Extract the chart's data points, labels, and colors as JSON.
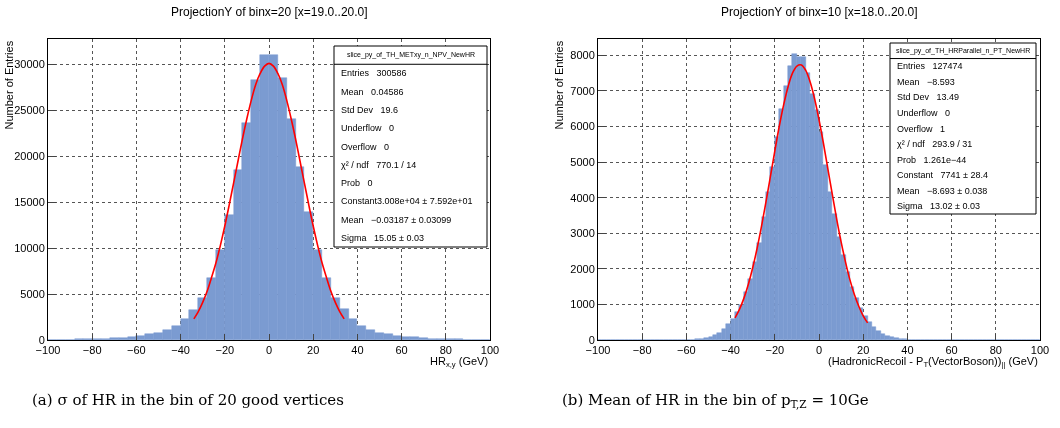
{
  "chart_data": [
    {
      "type": "histogram",
      "title": "ProjectionY of binx=20 [x=19.0..20.0]",
      "xlabel": "HR$_{x,y}$ (GeV)",
      "ylabel": "Number of Entries",
      "xlim": [
        -100,
        100
      ],
      "xticks": [
        {
          "value": -100,
          "label": "−100"
        },
        {
          "value": -80,
          "label": "−80"
        },
        {
          "value": -60,
          "label": "−60"
        },
        {
          "value": -40,
          "label": "−40"
        },
        {
          "value": -20,
          "label": "−20"
        },
        0,
        20,
        40,
        60,
        80,
        100
      ],
      "ylim": [
        0,
        32750
      ],
      "yticks": [
        0,
        5000,
        10000,
        15000,
        20000,
        25000,
        30000
      ],
      "grid": true,
      "series": [
        {
          "color": "#7b9bd1",
          "bins": [
            -100,
            -96,
            -92,
            -88,
            -84,
            -80,
            -76,
            -72,
            -68,
            -64,
            -60,
            -56,
            -52,
            -48,
            -44,
            -40,
            -36,
            -32,
            -28,
            -24,
            -20,
            -16,
            -12,
            -8,
            -4,
            0,
            4,
            8,
            12,
            16,
            20,
            24,
            28,
            32,
            36,
            40,
            44,
            48,
            52,
            56,
            60,
            64,
            68,
            72,
            76,
            80,
            84,
            88,
            92,
            96,
            100
          ],
          "values": [
            20,
            30,
            40,
            60,
            80,
            110,
            150,
            200,
            270,
            350,
            450,
            600,
            800,
            1100,
            1500,
            2320,
            3260,
            4600,
            6780,
            9780,
            13620,
            18550,
            23660,
            28330,
            31050,
            31050,
            28510,
            24060,
            18800,
            13950,
            9820,
            6780,
            4600,
            3330,
            2320,
            1500,
            1100,
            800,
            620,
            460,
            360,
            280,
            210,
            160,
            120,
            90,
            65,
            45,
            30,
            20
          ]
        },
        {
          "type": "line",
          "color": "#ff0000",
          "x": [
            -34,
            -32,
            -30,
            -28,
            -26,
            -24,
            -22,
            -20,
            -18,
            -16,
            -14,
            -12,
            -10,
            -8,
            -6,
            -4,
            -2,
            0,
            2,
            4,
            6,
            8,
            10,
            12,
            14,
            16,
            18,
            20,
            22,
            24,
            26,
            28,
            30,
            32,
            34
          ],
          "values": [
            2300,
            3100,
            4100,
            5300,
            6800,
            8400,
            10300,
            12400,
            14700,
            17100,
            19500,
            21900,
            24100,
            26100,
            27800,
            29000,
            29800,
            30100,
            29800,
            29000,
            27800,
            26100,
            24100,
            21900,
            19500,
            17100,
            14700,
            12400,
            10300,
            8400,
            6800,
            5300,
            4100,
            3100,
            2300
          ]
        }
      ],
      "annotations": [
        "(a) σ of HR in the bin of 20 good vertices",
        "slice_py_of_TH_METxy_n_NPV_NewHR",
        "Entries   300586",
        "Mean   0.04586",
        "Std Dev   19.6",
        "Underflow   0",
        "Overflow   0",
        "χ² / ndf   770.1 / 14",
        "Prob   0",
        "Constant3.008e+04 ± 7.592e+01",
        "Mean   −0.03187 ± 0.03099",
        "Sigma   15.05 ± 0.03"
      ]
    },
    {
      "type": "histogram",
      "title": "ProjectionY of binx=10 [x=18.0..20.0]",
      "xlabel": "(HadronicRecoil - P$_{T}$(VectorBoson))$_{||}$ (GeV)",
      "ylabel": "Number of Entries",
      "xlim": [
        -100,
        100
      ],
      "xticks": [
        {
          "value": -100,
          "label": "−100"
        },
        {
          "value": -80,
          "label": "−80"
        },
        {
          "value": -60,
          "label": "−60"
        },
        {
          "value": -40,
          "label": "−40"
        },
        {
          "value": -20,
          "label": "−20"
        },
        0,
        20,
        40,
        60,
        80,
        100
      ],
      "ylim": [
        0,
        8460
      ],
      "yticks": [
        0,
        1000,
        2000,
        3000,
        4000,
        5000,
        6000,
        7000,
        8000
      ],
      "grid": true,
      "series": [
        {
          "color": "#7b9bd1",
          "bins": [
            -100,
            -98,
            -96,
            -94,
            -92,
            -90,
            -88,
            -86,
            -84,
            -82,
            -80,
            -78,
            -76,
            -74,
            -72,
            -70,
            -68,
            -66,
            -64,
            -62,
            -60,
            -58,
            -56,
            -54,
            -52,
            -50,
            -48,
            -46,
            -44,
            -42,
            -40,
            -38,
            -36,
            -34,
            -32,
            -30,
            -28,
            -26,
            -24,
            -22,
            -20,
            -18,
            -16,
            -14,
            -12,
            -10,
            -8,
            -6,
            -4,
            -2,
            0,
            2,
            4,
            6,
            8,
            10,
            12,
            14,
            16,
            18,
            20,
            22,
            24,
            26,
            28,
            30,
            32,
            34,
            36,
            38,
            40,
            42,
            44,
            46,
            48,
            50,
            52,
            54,
            56,
            58,
            60,
            62,
            64,
            66,
            68,
            70,
            72,
            74,
            76,
            78,
            80,
            82,
            84,
            86,
            88,
            90,
            92,
            94,
            96,
            98,
            100
          ],
          "values": [
            0,
            0,
            0,
            0,
            0,
            0,
            0,
            0,
            0,
            0,
            0,
            0,
            0,
            0,
            0,
            0,
            0,
            0,
            1,
            3,
            6,
            12,
            20,
            35,
            55,
            90,
            140,
            210,
            310,
            440,
            600,
            780,
            980,
            1340,
            1720,
            2190,
            2720,
            3450,
            4160,
            4860,
            5700,
            6490,
            7150,
            7690,
            8050,
            7950,
            7950,
            7500,
            6920,
            6470,
            5840,
            4910,
            4150,
            3540,
            2890,
            2380,
            1900,
            1480,
            1190,
            890,
            680,
            500,
            370,
            260,
            180,
            120,
            80,
            50,
            30,
            20,
            12,
            6,
            3,
            1,
            0,
            0,
            0,
            0,
            0,
            0,
            0,
            0,
            0,
            0,
            0,
            0,
            0,
            0,
            0,
            0,
            0,
            0,
            0,
            0,
            0,
            0,
            0,
            0,
            0,
            0
          ]
        },
        {
          "type": "line",
          "color": "#ff0000",
          "x": [
            -38,
            -36,
            -34,
            -32,
            -30,
            -28,
            -26,
            -24,
            -22,
            -20,
            -18,
            -16,
            -14,
            -12,
            -10,
            -8,
            -6,
            -4,
            -2,
            0,
            2,
            4,
            6,
            8,
            10,
            12,
            14,
            16,
            18,
            20,
            22
          ],
          "values": [
            620,
            860,
            1170,
            1560,
            2030,
            2580,
            3200,
            3880,
            4590,
            5310,
            6000,
            6610,
            7120,
            7500,
            7700,
            7730,
            7580,
            7250,
            6780,
            6190,
            5530,
            4810,
            4100,
            3400,
            2760,
            2190,
            1690,
            1280,
            950,
            680,
            480
          ]
        }
      ],
      "annotations": [
        "(b) Mean of HR in the bin of p$_{T,Z}$ = 10Ge",
        "slice_py_of_TH_HRParallel_n_PT_NewHR",
        "Entries   127474",
        "Mean   −8.593",
        "Std Dev   13.49",
        "Underflow   0",
        "Overflow   1",
        "χ² / ndf   293.9 / 31",
        "Prob   1.261e−44",
        "Constant   7741 ± 28.4",
        "Mean   −8.693 ± 0.038",
        "Sigma   13.02 ± 0.03"
      ]
    }
  ]
}
